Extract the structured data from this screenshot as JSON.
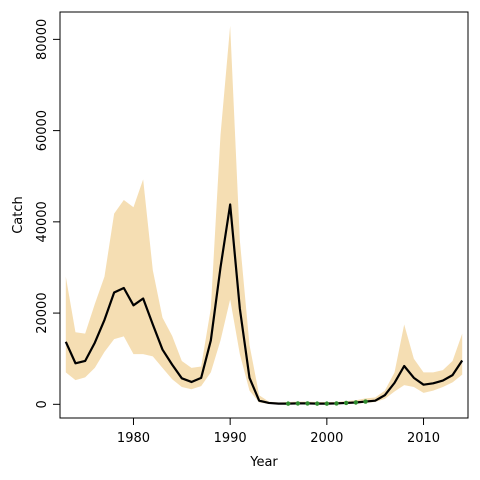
{
  "chart_data": {
    "type": "line",
    "title": "",
    "xlabel": "Year",
    "ylabel": "Catch",
    "xlim": [
      1972.4,
      2014.6
    ],
    "ylim": [
      -3000,
      86000
    ],
    "x_ticks": [
      1980,
      1990,
      2000,
      2010
    ],
    "y_ticks": [
      0,
      20000,
      40000,
      60000,
      80000
    ],
    "x_tick_labels": [
      "1980",
      "1990",
      "2000",
      "2010"
    ],
    "y_tick_labels": [
      "0",
      "20000",
      "40000",
      "60000",
      "80000"
    ],
    "grid": false,
    "colors": {
      "band": "#f5deb3",
      "line": "#000000",
      "points": "#2e8b2e"
    },
    "series": [
      {
        "type": "band",
        "x": [
          1973,
          1974,
          1975,
          1976,
          1977,
          1978,
          1979,
          1980,
          1981,
          1982,
          1983,
          1984,
          1985,
          1986,
          1987,
          1988,
          1989,
          1990,
          1991,
          1992,
          1993,
          1994,
          1995,
          1996,
          1997,
          1998,
          1999,
          2000,
          2001,
          2002,
          2003,
          2004,
          2005,
          2006,
          2007,
          2008,
          2009,
          2010,
          2011,
          2012,
          2013,
          2014
        ],
        "upper": [
          28000,
          15800,
          15500,
          22000,
          28000,
          41800,
          44800,
          43200,
          49300,
          29400,
          19000,
          15000,
          9500,
          8000,
          8300,
          21000,
          59000,
          83000,
          36000,
          13000,
          2000,
          600,
          400,
          500,
          600,
          600,
          500,
          500,
          500,
          700,
          900,
          1300,
          1500,
          3000,
          7000,
          17500,
          10000,
          7000,
          7000,
          7500,
          9500,
          15500
        ],
        "lower": [
          7000,
          5300,
          5900,
          8000,
          11500,
          14300,
          14900,
          11000,
          11000,
          10500,
          8000,
          5500,
          3800,
          3300,
          4000,
          7000,
          14000,
          23000,
          11000,
          3000,
          400,
          100,
          50,
          50,
          50,
          50,
          50,
          50,
          50,
          100,
          200,
          300,
          500,
          1200,
          2800,
          4200,
          3800,
          2500,
          3000,
          3800,
          4800,
          6500
        ]
      },
      {
        "type": "line",
        "x": [
          1973,
          1974,
          1975,
          1976,
          1977,
          1978,
          1979,
          1980,
          1981,
          1982,
          1983,
          1984,
          1985,
          1986,
          1987,
          1988,
          1989,
          1990,
          1991,
          1992,
          1993,
          1994,
          1995,
          1996,
          1997,
          1998,
          1999,
          2000,
          2001,
          2002,
          2003,
          2004,
          2005,
          2006,
          2007,
          2008,
          2009,
          2010,
          2011,
          2012,
          2013,
          2014
        ],
        "y": [
          13700,
          9000,
          9500,
          13500,
          18500,
          24500,
          25500,
          21700,
          23200,
          17500,
          12000,
          8700,
          5700,
          4900,
          5800,
          14000,
          30000,
          43800,
          21000,
          5800,
          800,
          300,
          150,
          150,
          200,
          200,
          150,
          150,
          200,
          300,
          400,
          600,
          800,
          2000,
          4700,
          8400,
          5800,
          4300,
          4600,
          5200,
          6400,
          9600
        ]
      },
      {
        "type": "points",
        "x": [
          1996,
          1997,
          1998,
          1999,
          2000,
          2001,
          2002,
          2003,
          2004
        ],
        "y": [
          150,
          200,
          200,
          150,
          150,
          200,
          300,
          400,
          600
        ]
      }
    ]
  }
}
